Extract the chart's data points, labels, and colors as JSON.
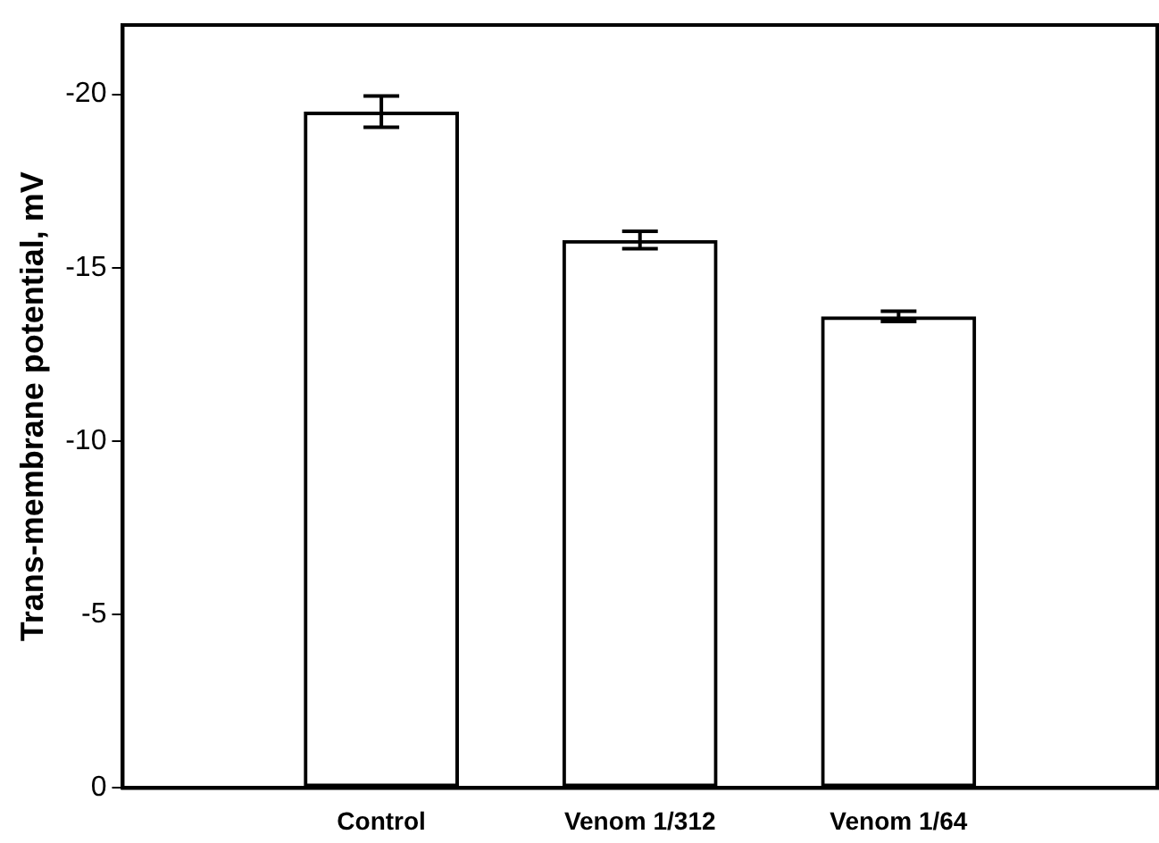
{
  "chart_data": {
    "type": "bar",
    "ylabel": "Trans-membrane potential, mV",
    "categories": [
      "Control",
      "Venom 1/312",
      "Venom 1/64"
    ],
    "values": [
      -19.5,
      -15.8,
      -13.6
    ],
    "errors": [
      0.45,
      0.25,
      0.15
    ],
    "color": "#000000",
    "ylim": [
      0,
      -22
    ],
    "yticks": [
      0,
      -5,
      -10,
      -15,
      -20
    ],
    "grid": false,
    "legend": false
  }
}
